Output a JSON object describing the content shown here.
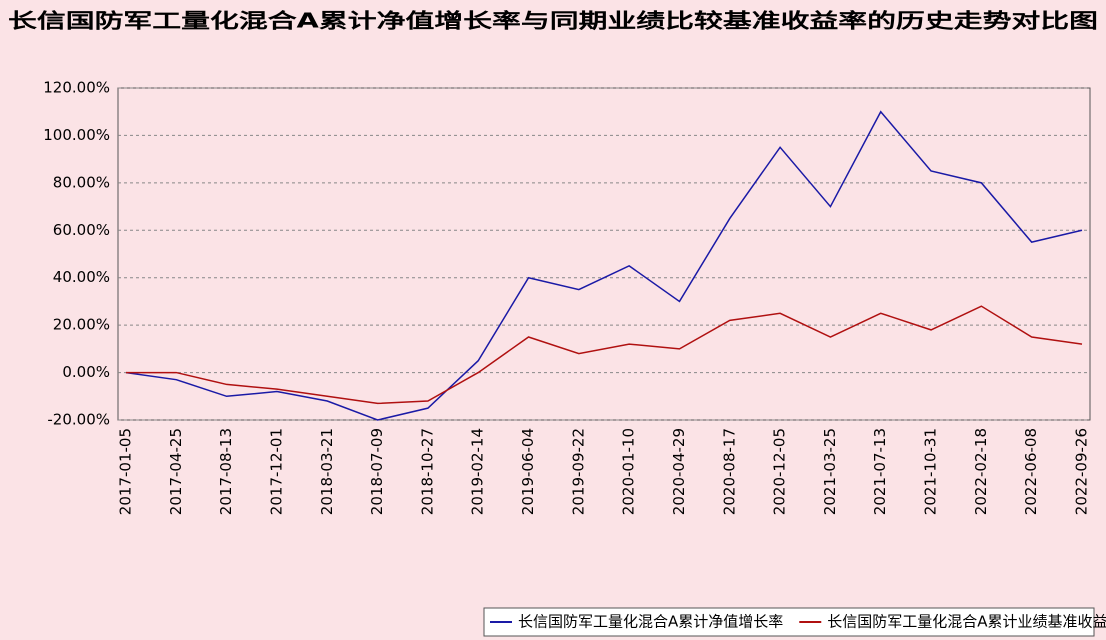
{
  "chart_data": {
    "type": "line",
    "title": "长信国防军工量化混合A累计净值增长率与同期业绩比较基准收益率的历史走势对比图",
    "categories": [
      "2017-01-05",
      "2017-04-25",
      "2017-08-13",
      "2017-12-01",
      "2018-03-21",
      "2018-07-09",
      "2018-10-27",
      "2019-02-14",
      "2019-06-04",
      "2019-09-22",
      "2020-01-10",
      "2020-04-29",
      "2020-08-17",
      "2020-12-05",
      "2021-03-25",
      "2021-07-13",
      "2021-10-31",
      "2022-02-18",
      "2022-06-08",
      "2022-09-26"
    ],
    "series": [
      {
        "name": "长信国防军工量化混合A累计净值增长率",
        "color": "#1a1aa6",
        "values": [
          0,
          -3,
          -10,
          -8,
          -12,
          -20,
          -15,
          5,
          40,
          35,
          45,
          30,
          65,
          95,
          70,
          110,
          85,
          80,
          55,
          60
        ]
      },
      {
        "name": "长信国防军工量化混合A累计业绩基准收益率",
        "color": "#b01010",
        "values": [
          0,
          0,
          -5,
          -7,
          -10,
          -13,
          -12,
          0,
          15,
          8,
          12,
          10,
          22,
          25,
          15,
          25,
          18,
          28,
          15,
          12
        ]
      }
    ],
    "ylim": [
      -20,
      120
    ],
    "yticks": [
      {
        "value": -20,
        "label": "-20.00%"
      },
      {
        "value": 0,
        "label": "0.00%"
      },
      {
        "value": 20,
        "label": "20.00%"
      },
      {
        "value": 40,
        "label": "40.00%"
      },
      {
        "value": 60,
        "label": "60.00%"
      },
      {
        "value": 80,
        "label": "80.00%"
      },
      {
        "value": 100,
        "label": "100.00%"
      },
      {
        "value": 120,
        "label": "120.00%"
      }
    ],
    "grid": true
  }
}
